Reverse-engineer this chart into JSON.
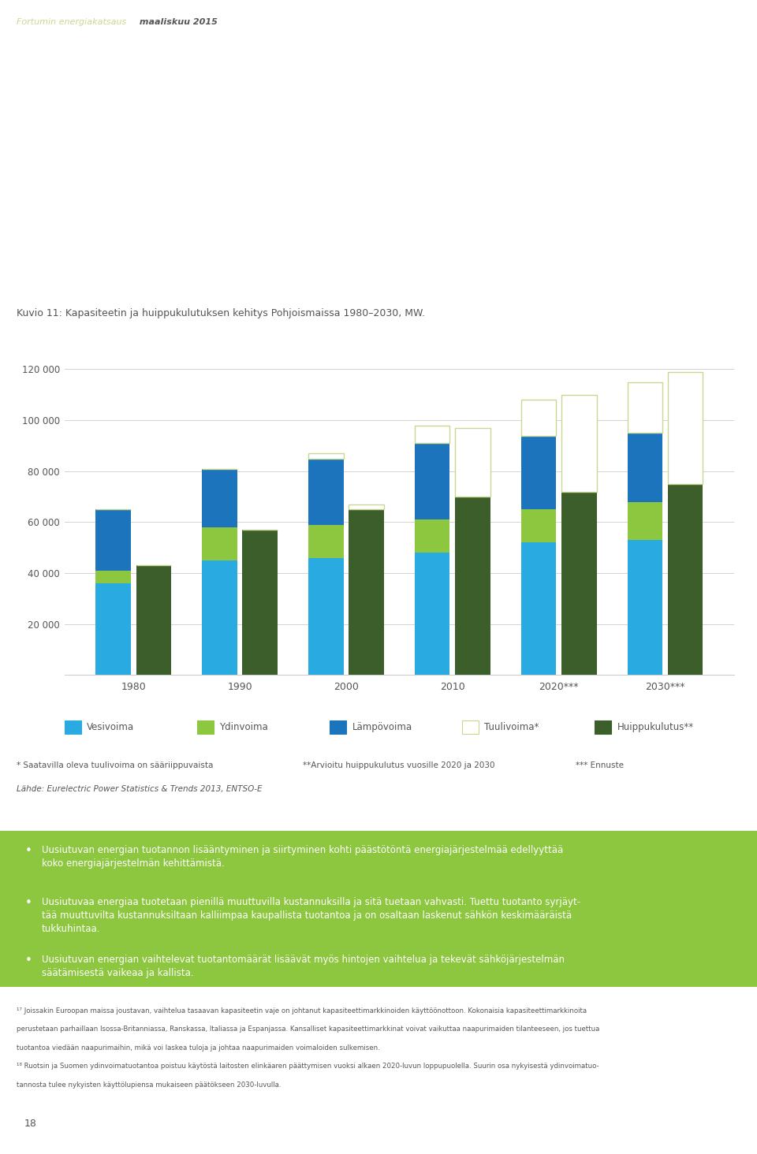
{
  "title": "Kuvio 11: Kapasiteetin ja huippukulutuksen kehitys Pohjoismaissa 1980–2030, MW.",
  "header1": "Fortumin energiakatsaus",
  "header2": " maaliskuu 2015",
  "years": [
    "1980",
    "1990",
    "2000",
    "2010",
    "2020***",
    "2030***"
  ],
  "vesivoima": [
    36000,
    45000,
    46000,
    48000,
    52000,
    53000
  ],
  "ydinvoima": [
    5000,
    13000,
    13000,
    13000,
    13000,
    15000
  ],
  "lampovoima": [
    24000,
    23000,
    26000,
    30000,
    29000,
    27000
  ],
  "tuulivoima": [
    0,
    0,
    2000,
    7000,
    14000,
    20000
  ],
  "huippukulutus": [
    43000,
    57000,
    65000,
    70000,
    72000,
    75000
  ],
  "huippu_extra": [
    0,
    0,
    2000,
    27000,
    38000,
    44000
  ],
  "color_vesi": "#29ABE2",
  "color_ydin": "#8DC63F",
  "color_lampo": "#1C75BC",
  "color_tuuli_fill": "#FFFFFF",
  "color_tuuli_edge": "#C8D98F",
  "color_huippu": "#3B5E2B",
  "ylim": [
    0,
    120000
  ],
  "yticks": [
    0,
    20000,
    40000,
    60000,
    80000,
    100000,
    120000
  ],
  "legend_labels": [
    "Vesivoima",
    "Ydinvoima",
    "Lämpövoima",
    "Tuulivoima*",
    "Huippukulutus**"
  ],
  "footnote1": "* Saatavilla oleva tuulivoima on sääriippuvaista",
  "footnote2": "**Arvioitu huippukulutus vuosille 2020 ja 2030",
  "footnote3": "*** Ennuste",
  "footnote4": "Lähde: Eurelectric Power Statistics & Trends 2013, ENTSO-E",
  "bullet_texts": [
    "Uusiutuvan energian tuotannon lisääntyminen ja siirtyminen kohti päästötöntä energiajärjestelmää edellyyttää\nkoko energiajärjestelmän kehittämistä.",
    "Uusiutuvaa energiaa tuotetaan pienillä muuttuvilla kustannuksilla ja sitä tuetaan vahvasti. Tuettu tuotanto syrjäyt-\ntää muuttuvilta kustannuksiltaan kalliimpaa kaupallista tuotantoa ja on osaltaan laskenut sähkön keskimääräistä\ntukkuhintaa.",
    "Uusiutuvan energian vaihtelevat tuotantomäärät lisäävät myös hintojen vaihtelua ja tekevät sähköjärjestelmän\nsäätämisestä vaikeaa ja kallista."
  ],
  "footnote_bottom1": "¹⁷ Joissakin Euroopan maissa joustavan, vaihtelua tasaavan kapasiteetin vaje on johtanut kapasiteettimarkkinoiden käyttöönottoon. Kokonaisia kapasiteettimarkkinoita",
  "footnote_bottom2": "perustetaan parhaillaan Isossa-Britanniassa, Ranskassa, Italiassa ja Espanjassa. Kansalliset kapasiteettimarkkinat voivat vaikuttaa naapurimaiden tilanteeseen, jos tuettua",
  "footnote_bottom3": "tuotantoa viedään naapurimaihin, mikä voi laskea tuloja ja johtaa naapurimaiden voimaloiden sulkemisen.",
  "footnote_bottom4": "¹⁸ Ruotsin ja Suomen ydinvoimatuotantoa poistuu käytöstä laitosten elinkäaren päättymisen vuoksi alkaen 2020-luvun loppupuolella. Suurin osa nykyisestä ydinvoimatuo-",
  "footnote_bottom5": "tannosta tulee nykyisten käyttölupiensa mukaiseen päätökseen 2030-luvulla.",
  "page_number": "18",
  "green_color": "#8DC63F",
  "header_color1": "#C8D98F",
  "header_color2": "#555555",
  "text_color": "#555555",
  "bullet_bg_color": "#8DC63F",
  "bullet_text_color": "#FFFFFF"
}
